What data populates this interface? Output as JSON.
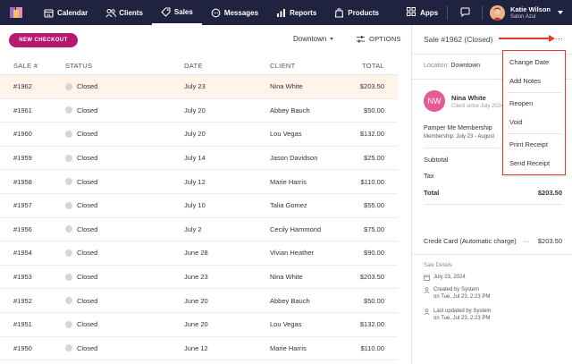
{
  "nav": {
    "items": [
      {
        "label": "Calendar",
        "icon": "calendar-icon"
      },
      {
        "label": "Clients",
        "icon": "clients-icon"
      },
      {
        "label": "Sales",
        "icon": "tag-icon",
        "active": true
      },
      {
        "label": "Messages",
        "icon": "messages-icon"
      },
      {
        "label": "Reports",
        "icon": "reports-icon"
      },
      {
        "label": "Products",
        "icon": "products-icon"
      }
    ],
    "apps_label": "Apps",
    "user_name": "Katie Wilson",
    "user_org": "Salon Azul"
  },
  "toolbar": {
    "new_checkout_label": "NEW CHECKOUT",
    "location": "Downtown",
    "options_label": "OPTIONS"
  },
  "table": {
    "headers": {
      "sale": "SALE #",
      "status": "STATUS",
      "date": "DATE",
      "client": "CLIENT",
      "total": "TOTAL"
    },
    "rows": [
      {
        "sale": "#1962",
        "status": "Closed",
        "date": "July 23",
        "client": "Nina White",
        "total": "$203.50",
        "selected": true
      },
      {
        "sale": "#1961",
        "status": "Closed",
        "date": "July 20",
        "client": "Abbey Bauch",
        "total": "$50.00"
      },
      {
        "sale": "#1960",
        "status": "Closed",
        "date": "July 20",
        "client": "Lou Vegas",
        "total": "$132.00"
      },
      {
        "sale": "#1959",
        "status": "Closed",
        "date": "July 14",
        "client": "Jason Davidson",
        "total": "$25.00"
      },
      {
        "sale": "#1958",
        "status": "Closed",
        "date": "July 12",
        "client": "Marie Harris",
        "total": "$110.00"
      },
      {
        "sale": "#1957",
        "status": "Closed",
        "date": "July 10",
        "client": "Talia Gomez",
        "total": "$55.00"
      },
      {
        "sale": "#1956",
        "status": "Closed",
        "date": "July 2",
        "client": "Cecily Hammond",
        "total": "$75.00"
      },
      {
        "sale": "#1954",
        "status": "Closed",
        "date": "June 28",
        "client": "Vivian Heather",
        "total": "$90.00"
      },
      {
        "sale": "#1953",
        "status": "Closed",
        "date": "June 23",
        "client": "Nina White",
        "total": "$203.50"
      },
      {
        "sale": "#1952",
        "status": "Closed",
        "date": "June 20",
        "client": "Abbey Bauch",
        "total": "$50.00"
      },
      {
        "sale": "#1951",
        "status": "Closed",
        "date": "June 20",
        "client": "Lou Vegas",
        "total": "$132.00"
      },
      {
        "sale": "#1950",
        "status": "Closed",
        "date": "June 12",
        "client": "Marie Harris",
        "total": "$110.00"
      }
    ]
  },
  "panel": {
    "title": "Sale #1962 (Closed)",
    "more": "···",
    "location_label": "Location:",
    "location_value": "Downtown",
    "client_initials": "NW",
    "client_name": "Nina White",
    "client_since": "Client since July 2024",
    "item_name": "Pamper Me Membership",
    "item_sub": "Membership: July 23 - August",
    "subtotal_label": "Subtotal",
    "tax_label": "Tax",
    "total_label": "Total",
    "total_value": "$203.50",
    "payment_label": "Credit Card (Automatic charge)",
    "payment_more": "···",
    "payment_value": "$203.50",
    "details_title": "Sale Details",
    "sale_date": "July 23, 2024",
    "created_line1": "Created by System",
    "created_line2": "on Tue, Jul 23, 2:23 PM",
    "updated_line1": "Last updated by System",
    "updated_line2": "on Tue, Jul 23, 2:23 PM"
  },
  "menu": {
    "items": [
      "Change Date",
      "Add Notes",
      "Reopen",
      "Void",
      "Print Receipt",
      "Send Receipt"
    ]
  },
  "colors": {
    "nav_bg": "#1f2340",
    "accent_pink": "#b5186e",
    "avatar_pink": "#e45a94",
    "highlight_red": "#e5392b",
    "selected_row": "#fff4ea"
  }
}
